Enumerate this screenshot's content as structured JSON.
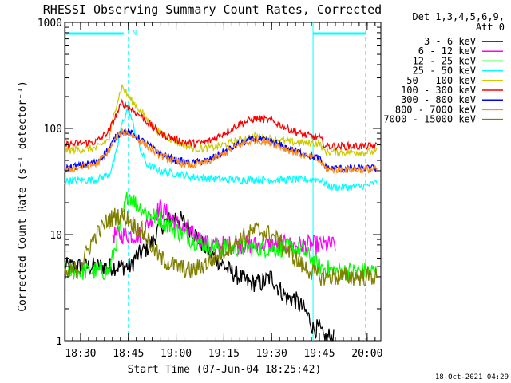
{
  "chart_data": {
    "type": "line",
    "title": "RHESSI Observing Summary Count Rates, Corrected",
    "xlabel": "Start Time (07-Jun-04 18:25:42)",
    "ylabel": "Corrected Count Rate (s⁻¹ detector⁻¹)",
    "yscale": "log",
    "ylim": [
      1,
      1000
    ],
    "xlim_minutes_after_1825": [
      0,
      99.3
    ],
    "x_ticks": [
      {
        "label": "18:30",
        "minutes": 5
      },
      {
        "label": "18:45",
        "minutes": 20
      },
      {
        "label": "19:00",
        "minutes": 35
      },
      {
        "label": "19:15",
        "minutes": 50
      },
      {
        "label": "19:30",
        "minutes": 65
      },
      {
        "label": "19:45",
        "minutes": 80
      },
      {
        "label": "20:00",
        "minutes": 95
      }
    ],
    "y_ticks": [
      {
        "label": "1",
        "value": 1
      },
      {
        "label": "10",
        "value": 10
      },
      {
        "label": "100",
        "value": 100
      },
      {
        "label": "1000",
        "value": 1000
      }
    ],
    "legend_title": "Det 1,3,4,5,6,9,",
    "legend_title2": "Att 0",
    "legend_position": "right",
    "timestamp": "18-Oct-2021 04:29",
    "night_marker": "N",
    "series": [
      {
        "name": "3 - 6 keV",
        "color": "#000000",
        "x": [
          21,
          22,
          27,
          30,
          35,
          40,
          45,
          52,
          58,
          62,
          65,
          67,
          70,
          72,
          75,
          77,
          78,
          80,
          81,
          82,
          83,
          84
        ],
        "values": [
          5,
          6,
          8,
          12,
          15,
          11,
          7,
          4.5,
          3.5,
          3.5,
          4,
          3.2,
          2.5,
          2.5,
          2,
          1.6,
          1.3,
          1.3,
          1.1,
          1.05,
          1.1,
          1.05
        ],
        "range": [
          0,
          84.5
        ]
      },
      {
        "name": "6 - 12 keV",
        "color": "#ff00ff",
        "x": [
          15,
          20,
          24,
          27,
          30,
          33,
          36,
          40,
          45,
          50,
          55,
          60,
          65,
          70,
          75,
          80,
          85
        ],
        "values": [
          10,
          10,
          10,
          14,
          18,
          15,
          12,
          10,
          8,
          8,
          8,
          8,
          8,
          8,
          8,
          8,
          8
        ],
        "range": [
          15,
          85
        ]
      },
      {
        "name": "12 - 25 keV",
        "color": "#00ff00",
        "x": [
          0,
          10,
          14,
          16,
          18,
          20,
          22,
          24,
          26,
          30,
          35,
          40,
          45,
          50,
          55,
          60,
          65,
          70,
          75,
          80,
          85,
          90,
          95,
          98
        ],
        "values": [
          4.5,
          4.5,
          4.5,
          8,
          14,
          25,
          20,
          18,
          16,
          14,
          11,
          9,
          8,
          7.5,
          7.5,
          7.5,
          7.5,
          7.5,
          7,
          5,
          4.5,
          4.5,
          4.5,
          4.5
        ]
      },
      {
        "name": "25 - 50 keV",
        "color": "#00ffff",
        "x": [
          0,
          10,
          14,
          16,
          18,
          20,
          22,
          24,
          26,
          30,
          40,
          50,
          60,
          70,
          78,
          80,
          82,
          84,
          86,
          90,
          95,
          98
        ],
        "values": [
          32,
          33,
          37,
          55,
          110,
          160,
          95,
          60,
          45,
          40,
          35,
          33,
          33,
          33,
          33,
          33,
          30,
          28,
          28,
          28,
          29,
          31
        ]
      },
      {
        "name": "50 - 100 keV",
        "color": "#cccc00",
        "x": [
          0,
          10,
          14,
          16,
          18,
          20,
          22,
          24,
          26,
          30,
          35,
          40,
          45,
          50,
          55,
          60,
          65,
          70,
          75,
          80,
          82,
          84,
          86,
          90,
          95,
          98
        ],
        "values": [
          62,
          65,
          80,
          160,
          250,
          200,
          170,
          145,
          120,
          90,
          75,
          65,
          65,
          70,
          78,
          85,
          80,
          75,
          73,
          72,
          60,
          60,
          60,
          60,
          60,
          60
        ]
      },
      {
        "name": "100 - 300 keV",
        "color": "#ff0000",
        "x": [
          0,
          10,
          14,
          16,
          18,
          20,
          22,
          24,
          26,
          30,
          35,
          40,
          45,
          50,
          55,
          60,
          65,
          70,
          75,
          80,
          82,
          84,
          86,
          90,
          95,
          98
        ],
        "values": [
          70,
          75,
          95,
          130,
          175,
          160,
          145,
          130,
          115,
          90,
          78,
          72,
          75,
          90,
          110,
          125,
          118,
          100,
          87,
          82,
          68,
          68,
          68,
          68,
          68,
          68
        ]
      },
      {
        "name": "300 - 800 keV",
        "color": "#0000ff",
        "x": [
          0,
          10,
          14,
          16,
          18,
          20,
          22,
          24,
          26,
          30,
          35,
          40,
          45,
          50,
          55,
          60,
          65,
          70,
          75,
          80,
          82,
          84,
          86,
          90,
          95,
          98
        ],
        "values": [
          42,
          48,
          65,
          82,
          95,
          92,
          86,
          78,
          70,
          58,
          50,
          47,
          50,
          60,
          72,
          80,
          75,
          65,
          58,
          52,
          43,
          42,
          42,
          42,
          42,
          42
        ]
      },
      {
        "name": "800 - 7000 keV",
        "color": "#ff8c1a",
        "x": [
          0,
          10,
          14,
          16,
          18,
          20,
          22,
          24,
          26,
          30,
          35,
          40,
          45,
          50,
          55,
          60,
          65,
          70,
          75,
          80,
          82,
          84,
          86,
          90,
          95,
          98
        ],
        "values": [
          40,
          46,
          62,
          80,
          92,
          90,
          84,
          76,
          68,
          56,
          48,
          45,
          48,
          58,
          70,
          78,
          73,
          63,
          56,
          50,
          42,
          41,
          41,
          41,
          41,
          41
        ]
      },
      {
        "name": "7000 - 15000 keV",
        "color": "#808000",
        "x": [
          0,
          5,
          8,
          10,
          13,
          16,
          18,
          20,
          22,
          24,
          26,
          30,
          35,
          40,
          45,
          50,
          55,
          60,
          65,
          70,
          75,
          80,
          85,
          90,
          95,
          98
        ],
        "values": [
          4,
          5,
          8,
          10,
          13,
          15,
          15,
          14,
          12,
          11,
          9,
          6,
          5,
          4.5,
          5.5,
          7,
          9,
          11,
          10,
          7,
          5,
          4,
          4,
          4,
          4,
          4
        ]
      }
    ],
    "attenuator_marks": [
      {
        "x_minutes": 0,
        "values": [
          8.3,
          8.5
        ]
      },
      {
        "x_minutes": 21,
        "values": [
          8.5,
          10
        ]
      }
    ]
  }
}
